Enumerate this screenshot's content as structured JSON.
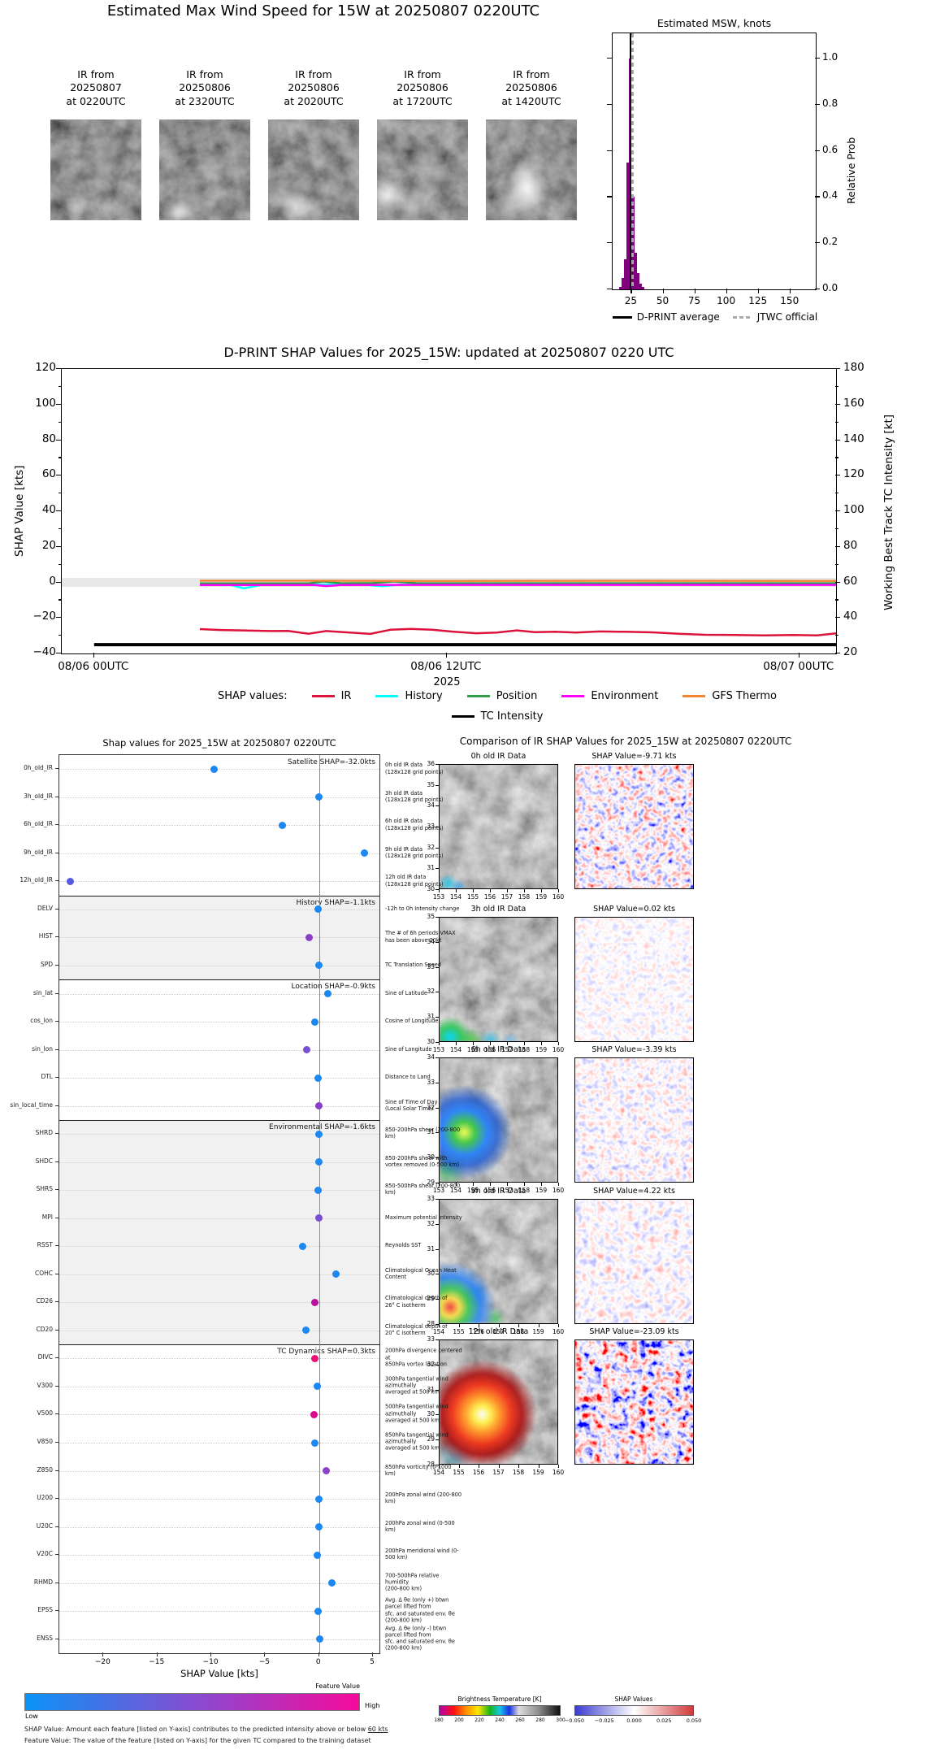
{
  "figure": {
    "title": "Estimated Max Wind Speed for 15W at 20250807 0220UTC"
  },
  "ir_thumbnails": [
    {
      "label": "IR from\n20250807\nat 0220UTC"
    },
    {
      "label": "IR from\n20250806\nat 2320UTC"
    },
    {
      "label": "IR from\n20250806\nat 2020UTC"
    },
    {
      "label": "IR from\n20250806\nat 1720UTC"
    },
    {
      "label": "IR from\n20250806\nat 1420UTC"
    }
  ],
  "chart_data": [
    {
      "id": "msw_histogram",
      "type": "bar",
      "title": "Estimated MSW, knots",
      "ylabel": "Relative Prob",
      "xlim": [
        10,
        170
      ],
      "ylim": [
        0,
        1.11
      ],
      "xticks": [
        25,
        50,
        75,
        100,
        125,
        150
      ],
      "yticks": [
        0.0,
        0.2,
        0.4,
        0.6,
        0.8,
        1.0
      ],
      "bar_color": "#800080",
      "bin_width": 2,
      "bins": [
        {
          "x": 16,
          "p": 0.01
        },
        {
          "x": 18,
          "p": 0.05
        },
        {
          "x": 20,
          "p": 0.13
        },
        {
          "x": 22,
          "p": 0.55
        },
        {
          "x": 24,
          "p": 1.0
        },
        {
          "x": 26,
          "p": 0.4
        },
        {
          "x": 28,
          "p": 0.16
        },
        {
          "x": 30,
          "p": 0.07
        },
        {
          "x": 32,
          "p": 0.025
        },
        {
          "x": 34,
          "p": 0.01
        }
      ],
      "vlines": [
        {
          "x": 24.3,
          "color": "#000000",
          "dash": false,
          "label": "D-PRINT average"
        },
        {
          "x": 25.3,
          "color": "#a9a9a9",
          "dash": true,
          "label": "JTWC official"
        }
      ],
      "legend": [
        {
          "label": "D-PRINT average",
          "color": "#000000",
          "dash": false
        },
        {
          "label": "JTWC official",
          "color": "#a9a9a9",
          "dash": true
        }
      ]
    },
    {
      "id": "shap_timeseries",
      "type": "line",
      "title": "D-PRINT SHAP Values for 2025_15W: updated at 20250807 0220 UTC",
      "ylabel_left": "SHAP Value [kts]",
      "ylabel_right": "Working Best Track TC Intensity [kt]",
      "ylim_left": [
        -40,
        120
      ],
      "ylim_right": [
        20,
        180
      ],
      "yticks_left": [
        120,
        100,
        80,
        60,
        40,
        20,
        0,
        -20,
        -40
      ],
      "yticks_right": [
        180,
        160,
        140,
        120,
        100,
        80,
        60,
        40,
        20
      ],
      "xlim_hours": [
        -1.1,
        25.25
      ],
      "xticks": [
        {
          "h": 0,
          "label": "08/06 00UTC"
        },
        {
          "h": 12,
          "label": "08/06 12UTC"
        },
        {
          "h": 24,
          "label": "08/07 00UTC"
        }
      ],
      "x_sublabel": "2025",
      "legend_prefix": "SHAP values:",
      "zero_band": {
        "center": 0,
        "half_width_kts": 2.3,
        "color": "#e8e8e8"
      },
      "series": [
        {
          "name": "History",
          "color": "#00ffff",
          "points": [
            [
              3.6,
              -1.2
            ],
            [
              4.6,
              -1.3
            ],
            [
              5.1,
              -3.4
            ],
            [
              5.7,
              -1.5
            ],
            [
              7.0,
              -1.2
            ],
            [
              9.2,
              -1.3
            ],
            [
              9.8,
              -2.2
            ],
            [
              10.4,
              -1.3
            ],
            [
              12,
              -1.2
            ],
            [
              15,
              -1.2
            ],
            [
              20,
              -1.1
            ],
            [
              25.25,
              -1.1
            ]
          ]
        },
        {
          "name": "Position",
          "color": "#2e9e4a",
          "points": [
            [
              3.6,
              -0.6
            ],
            [
              5.0,
              -0.6
            ],
            [
              7.3,
              -0.6
            ],
            [
              7.8,
              0.5
            ],
            [
              8.4,
              -0.5
            ],
            [
              9.5,
              -0.4
            ],
            [
              10.2,
              0.5
            ],
            [
              11,
              -0.5
            ],
            [
              15,
              -0.5
            ],
            [
              20,
              -0.5
            ],
            [
              25.25,
              -0.5
            ]
          ]
        },
        {
          "name": "Environment",
          "color": "#ff00ff",
          "points": [
            [
              3.6,
              -1.5
            ],
            [
              7.5,
              -1.5
            ],
            [
              7.9,
              -2.1
            ],
            [
              8.4,
              -1.5
            ],
            [
              12,
              -1.4
            ],
            [
              18,
              -1.4
            ],
            [
              25.25,
              -1.4
            ]
          ]
        },
        {
          "name": "GFS Thermo",
          "color": "#f08632",
          "points": [
            [
              3.6,
              0.9
            ],
            [
              8,
              0.9
            ],
            [
              12,
              0.8
            ],
            [
              18,
              0.9
            ],
            [
              25.25,
              0.8
            ]
          ]
        },
        {
          "name": "IR",
          "color": "#dc143c",
          "points": [
            [
              3.6,
              -26.3
            ],
            [
              4.3,
              -26.8
            ],
            [
              5.2,
              -27.1
            ],
            [
              6.0,
              -27.4
            ],
            [
              6.6,
              -27.3
            ],
            [
              7.3,
              -28.9
            ],
            [
              7.9,
              -27.4
            ],
            [
              8.6,
              -28.1
            ],
            [
              9.4,
              -29.0
            ],
            [
              10.1,
              -26.6
            ],
            [
              10.8,
              -26.2
            ],
            [
              11.5,
              -26.6
            ],
            [
              12.2,
              -27.7
            ],
            [
              13.0,
              -28.6
            ],
            [
              13.7,
              -28.2
            ],
            [
              14.4,
              -27.0
            ],
            [
              15.0,
              -28.0
            ],
            [
              15.7,
              -27.8
            ],
            [
              16.4,
              -28.2
            ],
            [
              17.2,
              -27.6
            ],
            [
              18.1,
              -27.8
            ],
            [
              19.0,
              -28.1
            ],
            [
              19.9,
              -28.9
            ],
            [
              20.8,
              -29.5
            ],
            [
              21.8,
              -29.6
            ],
            [
              22.8,
              -29.8
            ],
            [
              23.8,
              -29.6
            ],
            [
              24.6,
              -29.8
            ],
            [
              25.25,
              -28.7
            ]
          ]
        },
        {
          "name": "TC Intensity",
          "color": "#000000",
          "points": [
            [
              0,
              -35
            ],
            [
              25.25,
              -35
            ]
          ]
        }
      ],
      "legend_row1": [
        "IR",
        "History",
        "Position",
        "Environment",
        "GFS Thermo"
      ],
      "legend_row2": [
        "TC Intensity"
      ]
    },
    {
      "id": "feature_shap",
      "type": "scatter",
      "title": "Shap values for 2025_15W at 20250807 0220UTC",
      "xlabel": "SHAP Value [kts]",
      "xlim": [
        -24.1,
        5.6
      ],
      "xticks": [
        -20,
        -15,
        -10,
        -5,
        0,
        5
      ],
      "sections": [
        {
          "label": "Satellite SHAP=-32.0kts",
          "rows": 5,
          "shaded": false
        },
        {
          "label": "History SHAP=-1.1kts",
          "rows": 3,
          "shaded": true
        },
        {
          "label": "Location SHAP=-0.9kts",
          "rows": 5,
          "shaded": false
        },
        {
          "label": "Environmental SHAP=-1.6kts",
          "rows": 8,
          "shaded": true
        },
        {
          "label": "TC Dynamics SHAP=0.3kts",
          "rows": 11,
          "shaded": false
        }
      ],
      "features": [
        {
          "name": "0h_old_IR",
          "value": -9.71,
          "color": "#1d88f2",
          "desc": "0h old IR data\n(128x128 grid points)"
        },
        {
          "name": "3h_old_IR",
          "value": 0.02,
          "color": "#1d88f2",
          "desc": "3h old IR data\n(128x128 grid points)"
        },
        {
          "name": "6h_old_IR",
          "value": -3.39,
          "color": "#1d88f2",
          "desc": "6h old IR data\n(128x128 grid points)"
        },
        {
          "name": "9h_old_IR",
          "value": 4.22,
          "color": "#1d88f2",
          "desc": "9h old IR data\n(128x128 grid points)"
        },
        {
          "name": "12h_old_IR",
          "value": -23.09,
          "color": "#5559e2",
          "desc": "12h old IR data\n(128x128 grid points)"
        },
        {
          "name": "DELV",
          "value": -0.1,
          "color": "#1d88f2",
          "desc": "-12h to 0h Intensity change"
        },
        {
          "name": "HIST",
          "value": -0.95,
          "color": "#8a3fc8",
          "desc": "The # of 6h periods VMAX\nhas been above 20kt"
        },
        {
          "name": "SPD",
          "value": -0.05,
          "color": "#1d88f2",
          "desc": "TC Translation Speed"
        },
        {
          "name": "sin_lat",
          "value": 0.78,
          "color": "#1d88f2",
          "desc": "Sine of Latitude"
        },
        {
          "name": "cos_lon",
          "value": -0.39,
          "color": "#1d88f2",
          "desc": "Cosine of Longitude"
        },
        {
          "name": "sin_lon",
          "value": -1.18,
          "color": "#7a4ed2",
          "desc": "Sine of Longitude"
        },
        {
          "name": "DTL",
          "value": -0.1,
          "color": "#1d88f2",
          "desc": "Distance to Land"
        },
        {
          "name": "sin_local_time",
          "value": 0.0,
          "color": "#8a3fc8",
          "desc": "Sine of Time of Day\n(Local Solar Time)"
        },
        {
          "name": "SHRD",
          "value": -0.05,
          "color": "#1d88f2",
          "desc": "850-200hPa shear (200-800 km)"
        },
        {
          "name": "SHDC",
          "value": -0.05,
          "color": "#1d88f2",
          "desc": "850-200hPa shear with\nvortex removed (0-500 km)"
        },
        {
          "name": "SHRS",
          "value": -0.1,
          "color": "#1d88f2",
          "desc": "850-500hPa shear (200-800 km)"
        },
        {
          "name": "MPI",
          "value": -0.05,
          "color": "#7a4ed2",
          "desc": "Maximum potential intensity"
        },
        {
          "name": "RSST",
          "value": -1.53,
          "color": "#1d88f2",
          "desc": "Reynolds SST"
        },
        {
          "name": "COHC",
          "value": 1.6,
          "color": "#1d88f2",
          "desc": "Climatological Ocean Heat Content"
        },
        {
          "name": "CD26",
          "value": -0.4,
          "color": "#bb0d9f",
          "desc": "Climatological depth of\n26° C isotherm"
        },
        {
          "name": "CD20",
          "value": -1.2,
          "color": "#1d88f2",
          "desc": "Climatological depth of\n20° C isotherm"
        },
        {
          "name": "DIVC",
          "value": -0.4,
          "color": "#ee0f77",
          "desc": "200hPa divergence centered at\n850hPa vortex location"
        },
        {
          "name": "V300",
          "value": -0.15,
          "color": "#1d88f2",
          "desc": "300hPa tangential wind azimuthally\naveraged at 500 km"
        },
        {
          "name": "V500",
          "value": -0.5,
          "color": "#d9068a",
          "desc": "500hPa tangential wind azimuthally\naveraged at 500 km"
        },
        {
          "name": "V850",
          "value": -0.4,
          "color": "#1d88f2",
          "desc": "850hPa tangential wind azimuthally\naveraged at 500 km"
        },
        {
          "name": "Z850",
          "value": 0.65,
          "color": "#8a44cc",
          "desc": "850hPa vorticity (0-1000 km)"
        },
        {
          "name": "U200",
          "value": -0.05,
          "color": "#1d88f2",
          "desc": "200hPa zonal wind (200-800 km)"
        },
        {
          "name": "U20C",
          "value": 0.0,
          "color": "#1d88f2",
          "desc": "200hPa zonal wind (0-500 km)"
        },
        {
          "name": "V20C",
          "value": -0.15,
          "color": "#1d88f2",
          "desc": "200hPa meridional wind (0-500 km)"
        },
        {
          "name": "RHMD",
          "value": 1.2,
          "color": "#1d88f2",
          "desc": "700-500hPa relative humidity\n(200-800 km)"
        },
        {
          "name": "EPSS",
          "value": -0.1,
          "color": "#1d88f2",
          "desc": "Avg. Δ θe (only +) btwn parcel lifted from\nsfc. and saturated env. θe (200-800 km)"
        },
        {
          "name": "ENSS",
          "value": 0.05,
          "color": "#1d88f2",
          "desc": "Avg. Δ θe (only -) btwn parcel lifted from\nsfc. and saturated env. θe (200-800 km)"
        }
      ],
      "colorbar": {
        "label": "Feature Value",
        "low": "Low",
        "high": "High",
        "stops": [
          "#0a93f7",
          "#8a4ad0",
          "#f70a9b"
        ]
      },
      "footnotes": [
        {
          "text": "SHAP Value: Amount each feature [listed on Y-axis] contributes to the predicted intensity above or below ",
          "underline": "60 kts"
        },
        {
          "text": "Feature Value: The value of the feature [listed on Y-axis] for the given TC compared to the training dataset",
          "underline": ""
        }
      ]
    },
    {
      "id": "ir_comparison",
      "type": "heatmap",
      "title": "Comparison of IR SHAP Values for 2025_15W at 20250807 0220UTC",
      "rows": [
        {
          "ir_title": "0h old IR Data",
          "shap_title": "SHAP Value=-9.71 kts",
          "lat_ticks": [
            36,
            35,
            34,
            33,
            32,
            31,
            30
          ],
          "lon_ticks": [
            153,
            154,
            155,
            156,
            157,
            158,
            159,
            160
          ]
        },
        {
          "ir_title": "3h old IR Data",
          "shap_title": "SHAP Value=0.02 kts",
          "lat_ticks": [
            35,
            34,
            33,
            32,
            31,
            30
          ],
          "lon_ticks": [
            153,
            154,
            155,
            156,
            157,
            158,
            159,
            160
          ]
        },
        {
          "ir_title": "6h old IR Data",
          "shap_title": "SHAP Value=-3.39 kts",
          "lat_ticks": [
            34,
            33,
            32,
            31,
            30,
            29
          ],
          "lon_ticks": [
            153,
            154,
            155,
            156,
            157,
            158,
            159,
            160
          ]
        },
        {
          "ir_title": "9h old IR Data",
          "shap_title": "SHAP Value=4.22 kts",
          "lat_ticks": [
            33,
            32,
            31,
            30,
            29,
            28
          ],
          "lon_ticks": [
            154,
            155,
            156,
            157,
            158,
            159,
            160
          ]
        },
        {
          "ir_title": "12h old IR Data",
          "shap_title": "SHAP Value=-23.09 kts",
          "lat_ticks": [
            33,
            32,
            31,
            30,
            29,
            28
          ],
          "lon_ticks": [
            154,
            155,
            156,
            157,
            158,
            159,
            160
          ]
        }
      ],
      "colorbars": {
        "bt": {
          "label": "Brightness Temperature [K]",
          "ticks": [
            180,
            200,
            220,
            240,
            260,
            280,
            300
          ],
          "stops": [
            "#b400b4 0%",
            "#ff1010 12%",
            "#ff9000 22%",
            "#ffe600 32%",
            "#18b418 42%",
            "#18c8e6 50%",
            "#1830e6 58%",
            "#dcdcdc 66%",
            "#909090 82%",
            "#101010 100%"
          ]
        },
        "shap": {
          "label": "SHAP Values",
          "ticks": [
            "-0.050",
            "-0.025",
            "0.000",
            "0.025",
            "0.050"
          ],
          "stops": [
            "#3a3ad0 0%",
            "#ffffff 50%",
            "#d03a3a 100%"
          ]
        }
      }
    }
  ]
}
